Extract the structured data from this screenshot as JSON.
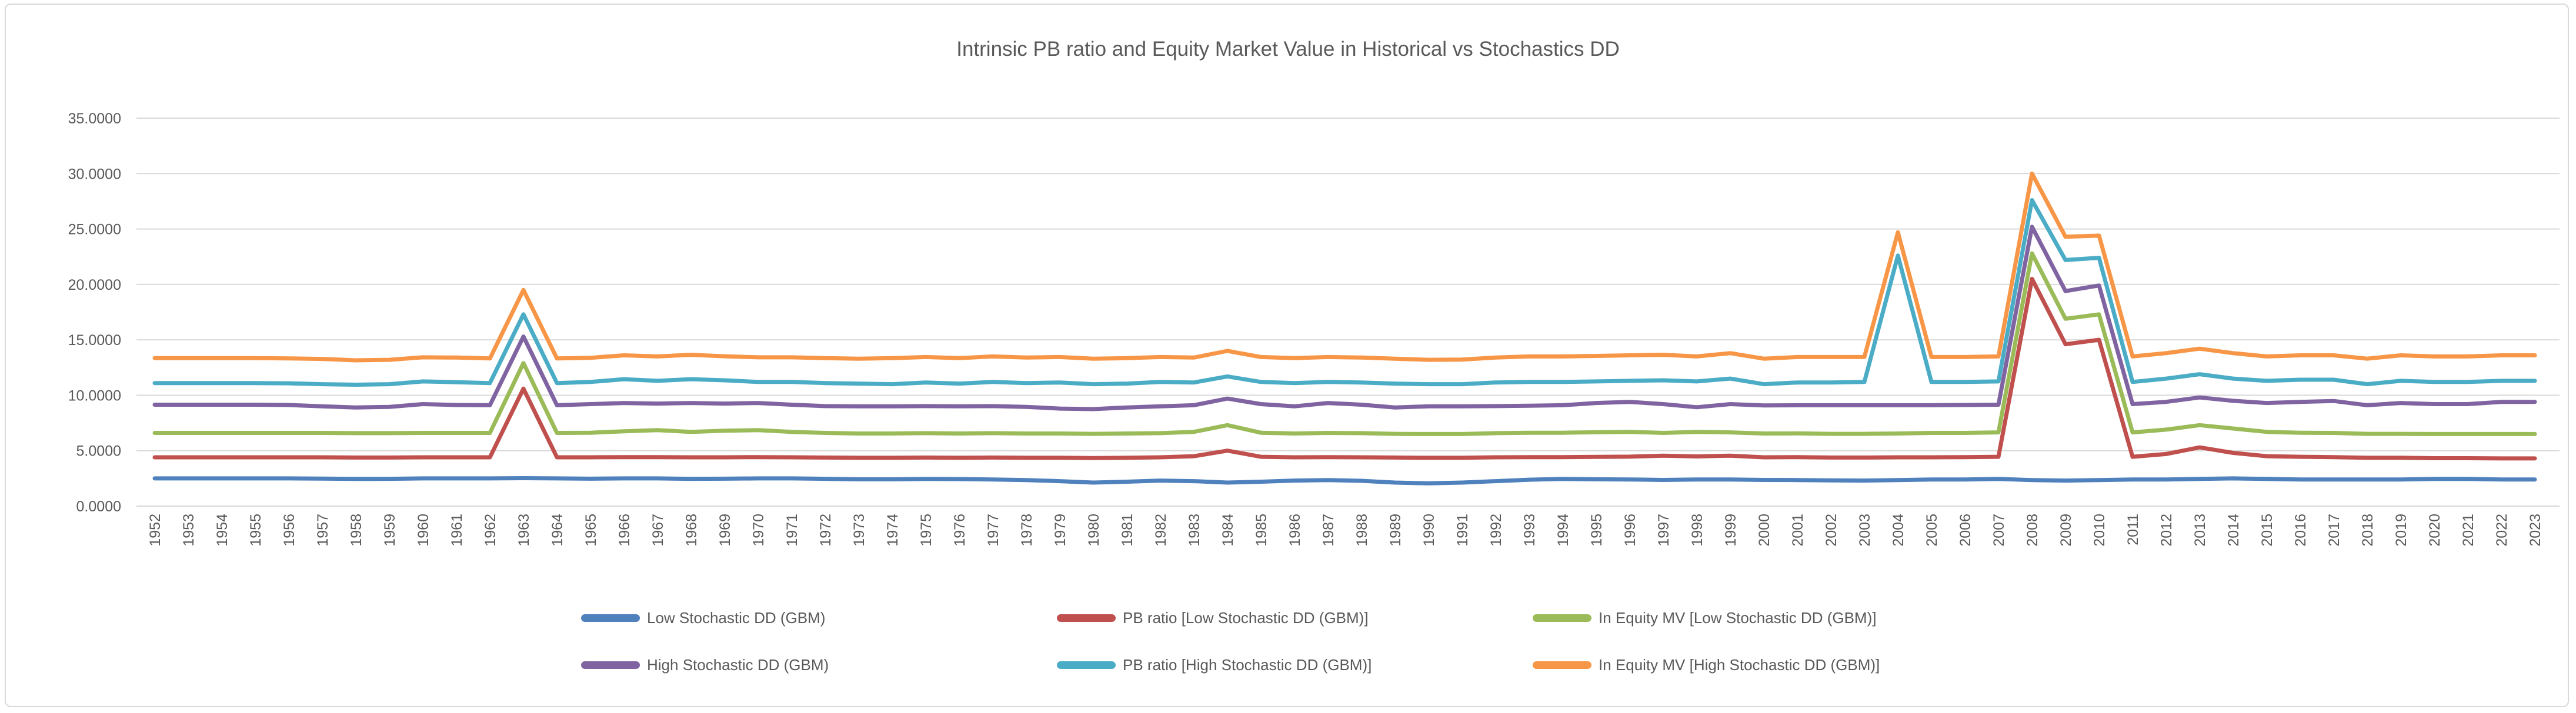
{
  "colors": {
    "background": "#ffffff",
    "frame_border": "#d9d9d9",
    "grid": "#d9d9d9",
    "text": "#595959"
  },
  "chart_data": {
    "type": "line",
    "title": "Intrinsic PB ratio and Equity Market Value in Historical vs Stochastics DD",
    "xlabel": "",
    "ylabel": "",
    "ylim": [
      0,
      35
    ],
    "ytick_step": 5,
    "ytick_labels": [
      "0.0000",
      "5.0000",
      "10.0000",
      "15.0000",
      "20.0000",
      "25.0000",
      "30.0000",
      "35.0000"
    ],
    "xtick_rotation": -90,
    "grid": true,
    "legend_position": "bottom",
    "x": [
      1952,
      1953,
      1954,
      1955,
      1956,
      1957,
      1958,
      1959,
      1960,
      1961,
      1962,
      1963,
      1964,
      1965,
      1966,
      1967,
      1968,
      1969,
      1970,
      1971,
      1972,
      1973,
      1974,
      1975,
      1976,
      1977,
      1978,
      1979,
      1980,
      1981,
      1982,
      1983,
      1984,
      1985,
      1986,
      1987,
      1988,
      1989,
      1990,
      1991,
      1992,
      1993,
      1994,
      1995,
      1996,
      1997,
      1998,
      1999,
      2000,
      2001,
      2002,
      2003,
      2004,
      2005,
      2006,
      2007,
      2008,
      2009,
      2010,
      2011,
      2012,
      2013,
      2014,
      2015,
      2016,
      2017,
      2018,
      2019,
      2020,
      2021,
      2022,
      2023
    ],
    "series": [
      {
        "name": "Low Stochastic DD (GBM)",
        "color": "#4F81BD",
        "values": [
          2.5,
          2.5,
          2.5,
          2.5,
          2.5,
          2.48,
          2.45,
          2.46,
          2.5,
          2.5,
          2.5,
          2.52,
          2.5,
          2.47,
          2.5,
          2.5,
          2.46,
          2.47,
          2.5,
          2.5,
          2.46,
          2.42,
          2.42,
          2.45,
          2.44,
          2.4,
          2.35,
          2.25,
          2.12,
          2.2,
          2.3,
          2.25,
          2.12,
          2.2,
          2.3,
          2.35,
          2.28,
          2.12,
          2.05,
          2.12,
          2.25,
          2.38,
          2.45,
          2.42,
          2.4,
          2.36,
          2.4,
          2.4,
          2.36,
          2.35,
          2.32,
          2.3,
          2.35,
          2.4,
          2.4,
          2.45,
          2.35,
          2.3,
          2.35,
          2.4,
          2.4,
          2.45,
          2.5,
          2.45,
          2.4,
          2.4,
          2.4,
          2.4,
          2.45,
          2.45,
          2.4,
          2.4
        ]
      },
      {
        "name": "PB ratio [Low Stochastic DD (GBM)]",
        "color": "#C0504D",
        "values": [
          4.4,
          4.4,
          4.4,
          4.4,
          4.4,
          4.4,
          4.38,
          4.38,
          4.4,
          4.4,
          4.4,
          10.6,
          4.4,
          4.4,
          4.42,
          4.42,
          4.4,
          4.4,
          4.42,
          4.4,
          4.38,
          4.36,
          4.36,
          4.38,
          4.36,
          4.38,
          4.36,
          4.36,
          4.34,
          4.36,
          4.4,
          4.5,
          5.0,
          4.45,
          4.4,
          4.42,
          4.4,
          4.38,
          4.36,
          4.36,
          4.4,
          4.42,
          4.42,
          4.44,
          4.46,
          4.55,
          4.48,
          4.55,
          4.4,
          4.42,
          4.38,
          4.38,
          4.4,
          4.4,
          4.42,
          4.45,
          20.5,
          14.6,
          15.0,
          4.45,
          4.7,
          5.3,
          4.8,
          4.5,
          4.45,
          4.42,
          4.36,
          4.36,
          4.32,
          4.32,
          4.3,
          4.3
        ]
      },
      {
        "name": "In Equity MV [Low Stochastic DD (GBM)]",
        "color": "#9BBB59",
        "values": [
          6.6,
          6.6,
          6.6,
          6.6,
          6.6,
          6.6,
          6.58,
          6.58,
          6.6,
          6.6,
          6.6,
          12.9,
          6.6,
          6.62,
          6.75,
          6.85,
          6.7,
          6.8,
          6.85,
          6.7,
          6.6,
          6.55,
          6.55,
          6.58,
          6.55,
          6.58,
          6.55,
          6.55,
          6.52,
          6.55,
          6.58,
          6.7,
          7.3,
          6.62,
          6.55,
          6.6,
          6.58,
          6.52,
          6.5,
          6.5,
          6.58,
          6.62,
          6.62,
          6.66,
          6.7,
          6.6,
          6.7,
          6.65,
          6.55,
          6.56,
          6.52,
          6.52,
          6.55,
          6.6,
          6.6,
          6.65,
          22.8,
          16.9,
          17.3,
          6.65,
          6.9,
          7.3,
          7.0,
          6.7,
          6.62,
          6.6,
          6.52,
          6.52,
          6.5,
          6.5,
          6.5,
          6.5
        ]
      },
      {
        "name": "High Stochastic DD (GBM)",
        "color": "#8064A2",
        "values": [
          9.15,
          9.15,
          9.15,
          9.15,
          9.12,
          9.0,
          8.9,
          8.95,
          9.2,
          9.12,
          9.1,
          15.3,
          9.1,
          9.2,
          9.3,
          9.25,
          9.3,
          9.25,
          9.3,
          9.15,
          9.02,
          9.0,
          9.0,
          9.02,
          9.0,
          9.02,
          8.95,
          8.8,
          8.75,
          8.9,
          9.0,
          9.1,
          9.7,
          9.2,
          9.0,
          9.3,
          9.15,
          8.9,
          9.0,
          9.0,
          9.02,
          9.05,
          9.1,
          9.3,
          9.4,
          9.2,
          8.92,
          9.2,
          9.08,
          9.1,
          9.1,
          9.1,
          9.1,
          9.1,
          9.12,
          9.15,
          25.2,
          19.4,
          19.9,
          9.2,
          9.4,
          9.8,
          9.5,
          9.3,
          9.4,
          9.48,
          9.1,
          9.3,
          9.2,
          9.2,
          9.4,
          9.4
        ]
      },
      {
        "name": "PB ratio [High Stochastic DD (GBM)]",
        "color": "#4BACC6",
        "values": [
          11.1,
          11.1,
          11.1,
          11.1,
          11.08,
          11.0,
          10.95,
          11.0,
          11.25,
          11.18,
          11.1,
          17.3,
          11.1,
          11.2,
          11.45,
          11.3,
          11.45,
          11.35,
          11.2,
          11.2,
          11.1,
          11.05,
          11.0,
          11.15,
          11.05,
          11.2,
          11.1,
          11.15,
          11.0,
          11.05,
          11.2,
          11.15,
          11.7,
          11.2,
          11.1,
          11.2,
          11.15,
          11.05,
          11.0,
          11.0,
          11.15,
          11.2,
          11.2,
          11.25,
          11.3,
          11.35,
          11.25,
          11.5,
          11.0,
          11.15,
          11.15,
          11.2,
          22.6,
          11.2,
          11.2,
          11.25,
          27.6,
          22.2,
          22.4,
          11.2,
          11.5,
          11.9,
          11.5,
          11.3,
          11.4,
          11.4,
          11.0,
          11.3,
          11.2,
          11.2,
          11.3,
          11.3
        ]
      },
      {
        "name": "In Equity MV [High Stochastic DD (GBM)]",
        "color": "#F79646",
        "values": [
          13.35,
          13.35,
          13.35,
          13.35,
          13.32,
          13.28,
          13.15,
          13.2,
          13.42,
          13.4,
          13.32,
          19.5,
          13.32,
          13.38,
          13.6,
          13.5,
          13.65,
          13.52,
          13.42,
          13.42,
          13.35,
          13.3,
          13.35,
          13.45,
          13.35,
          13.5,
          13.4,
          13.45,
          13.3,
          13.35,
          13.45,
          13.4,
          14.0,
          13.45,
          13.35,
          13.45,
          13.4,
          13.3,
          13.2,
          13.22,
          13.4,
          13.5,
          13.5,
          13.55,
          13.6,
          13.65,
          13.5,
          13.8,
          13.3,
          13.45,
          13.45,
          13.45,
          24.7,
          13.45,
          13.45,
          13.5,
          30.0,
          24.3,
          24.4,
          13.5,
          13.8,
          14.2,
          13.8,
          13.5,
          13.6,
          13.6,
          13.3,
          13.6,
          13.5,
          13.5,
          13.6,
          13.6
        ]
      }
    ],
    "legend_rows": [
      [
        0,
        1,
        2
      ],
      [
        3,
        4,
        5
      ]
    ]
  }
}
